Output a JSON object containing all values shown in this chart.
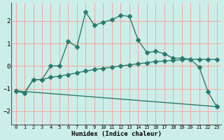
{
  "xlabel": "Humidex (Indice chaleur)",
  "background_color": "#cceee8",
  "grid_color": "#ff9999",
  "line_color": "#2d7a6e",
  "xlim": [
    -0.5,
    23.5
  ],
  "ylim": [
    -2.6,
    2.8
  ],
  "yticks": [
    -2,
    -1,
    0,
    1,
    2
  ],
  "xticks": [
    0,
    1,
    2,
    3,
    4,
    5,
    6,
    7,
    8,
    9,
    10,
    11,
    12,
    13,
    14,
    15,
    16,
    17,
    18,
    19,
    20,
    21,
    22,
    23
  ],
  "line1_x": [
    0,
    1,
    2,
    3,
    4,
    5,
    6,
    7,
    8,
    9,
    10,
    11,
    12,
    13,
    14,
    15,
    16,
    17,
    18,
    19,
    20,
    21,
    22,
    23
  ],
  "line1_y": [
    -1.1,
    -1.2,
    -0.6,
    -0.6,
    0.0,
    0.02,
    1.1,
    0.85,
    2.4,
    1.8,
    1.95,
    2.05,
    2.25,
    2.2,
    1.15,
    0.6,
    0.65,
    0.55,
    0.35,
    0.35,
    0.3,
    -0.05,
    -1.15,
    -1.8
  ],
  "line2_x": [
    0,
    1,
    2,
    3,
    4,
    5,
    6,
    7,
    8,
    9,
    10,
    11,
    12,
    13,
    14,
    15,
    16,
    17,
    18,
    19,
    20,
    21,
    22,
    23
  ],
  "line2_y": [
    -1.1,
    -1.2,
    -0.6,
    -0.6,
    -0.5,
    -0.45,
    -0.38,
    -0.3,
    -0.22,
    -0.16,
    -0.1,
    -0.05,
    0.0,
    0.05,
    0.1,
    0.15,
    0.2,
    0.22,
    0.25,
    0.28,
    0.3,
    0.3,
    0.3,
    0.3
  ],
  "line3_x": [
    0,
    23
  ],
  "line3_y": [
    -1.1,
    -1.8
  ],
  "marker_size": 3,
  "line_width": 1.0
}
